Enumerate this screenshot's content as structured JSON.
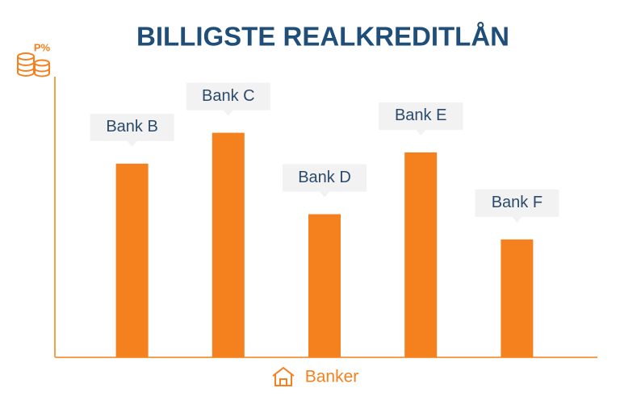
{
  "chart_data": {
    "type": "bar",
    "title": "BILLIGSTE REALKREDITLÅN",
    "y_label": "P%",
    "x_label": "Banker",
    "categories": [
      "Bank B",
      "Bank C",
      "Bank D",
      "Bank E",
      "Bank F"
    ],
    "values": [
      69,
      80,
      51,
      73,
      42
    ],
    "color": "#f5801e",
    "ylim": [
      0,
      100
    ]
  }
}
